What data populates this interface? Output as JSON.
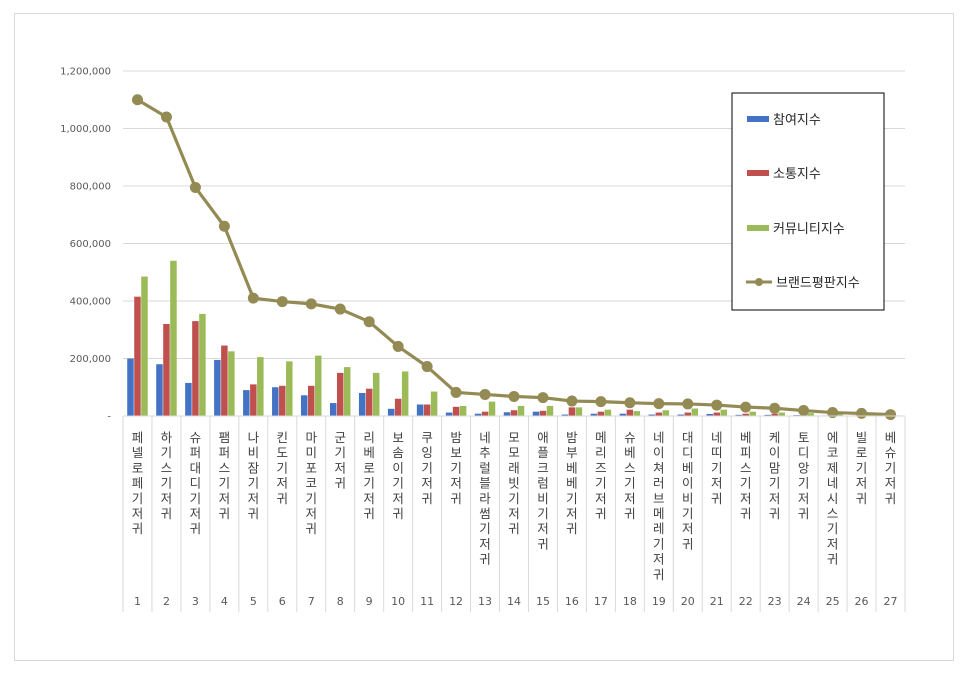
{
  "chart_data": {
    "type": "bar",
    "title": "",
    "xlabel": "",
    "ylabel": "",
    "ylim": [
      0,
      1200000
    ],
    "yticks": [
      0,
      200000,
      400000,
      600000,
      800000,
      1000000,
      1200000
    ],
    "ytick_labels": [
      "-",
      "200,000",
      "400,000",
      "600,000",
      "800,000",
      "1,000,000",
      "1,200,000"
    ],
    "grid": true,
    "legend_position": "top-right",
    "categories": [
      "페넬로페 기저귀",
      "하기스 기저귀",
      "슈퍼대디 기저귀",
      "팸퍼스 기저귀",
      "나비잠 기저귀",
      "킨도 기저귀",
      "마미포코 기저귀",
      "군 기저귀",
      "리베로 기저귀",
      "보솜이 기저귀",
      "쿠잉 기저귀",
      "밤보 기저귀",
      "네추럴블라썸 기저귀",
      "모모래빗 기저귀",
      "애플크럼비 기저귀",
      "밤부베베 기저귀",
      "메리즈 기저귀",
      "슈베스 기저귀",
      "네이쳐러브메레 기저귀",
      "대디베이비 기저귀",
      "네띠 기저귀",
      "베피스 기저귀",
      "케이맘 기저귀",
      "토디앙 기저귀",
      "에코제네시스 기저귀",
      "빌로 기저귀",
      "베슈 기저귀"
    ],
    "index_labels": [
      "1",
      "2",
      "3",
      "4",
      "5",
      "6",
      "7",
      "8",
      "9",
      "10",
      "11",
      "12",
      "13",
      "14",
      "15",
      "16",
      "17",
      "18",
      "19",
      "20",
      "21",
      "22",
      "23",
      "24",
      "25",
      "26",
      "27"
    ],
    "series": [
      {
        "name": "참여지수",
        "kind": "bar",
        "color": "#4472c4",
        "values": [
          200000,
          180000,
          115000,
          195000,
          90000,
          100000,
          72000,
          45000,
          80000,
          25000,
          40000,
          12000,
          8000,
          13000,
          15000,
          5000,
          8000,
          8000,
          5000,
          5000,
          7000,
          4000,
          4000,
          3000,
          2000,
          2000,
          1000
        ]
      },
      {
        "name": "소통지수",
        "kind": "bar",
        "color": "#c0504d",
        "values": [
          415000,
          320000,
          330000,
          245000,
          110000,
          105000,
          105000,
          150000,
          95000,
          60000,
          40000,
          32000,
          15000,
          20000,
          18000,
          30000,
          15000,
          22000,
          12000,
          12000,
          12000,
          8000,
          8000,
          6000,
          4000,
          3000,
          2000
        ]
      },
      {
        "name": "커뮤니티지수",
        "kind": "bar",
        "color": "#9bbb59",
        "values": [
          485000,
          540000,
          355000,
          225000,
          205000,
          190000,
          210000,
          170000,
          150000,
          155000,
          85000,
          35000,
          50000,
          35000,
          35000,
          30000,
          22000,
          17000,
          20000,
          26000,
          22000,
          15000,
          12000,
          10000,
          6000,
          5000,
          2000
        ]
      },
      {
        "name": "브랜드평판지수",
        "kind": "line",
        "color": "#948a54",
        "values": [
          1100000,
          1040000,
          795000,
          660000,
          410000,
          398000,
          390000,
          372000,
          328000,
          242000,
          172000,
          82000,
          75000,
          68000,
          64000,
          52000,
          50000,
          46000,
          43000,
          42000,
          38000,
          31000,
          27000,
          19000,
          12000,
          9000,
          5000
        ]
      }
    ]
  }
}
